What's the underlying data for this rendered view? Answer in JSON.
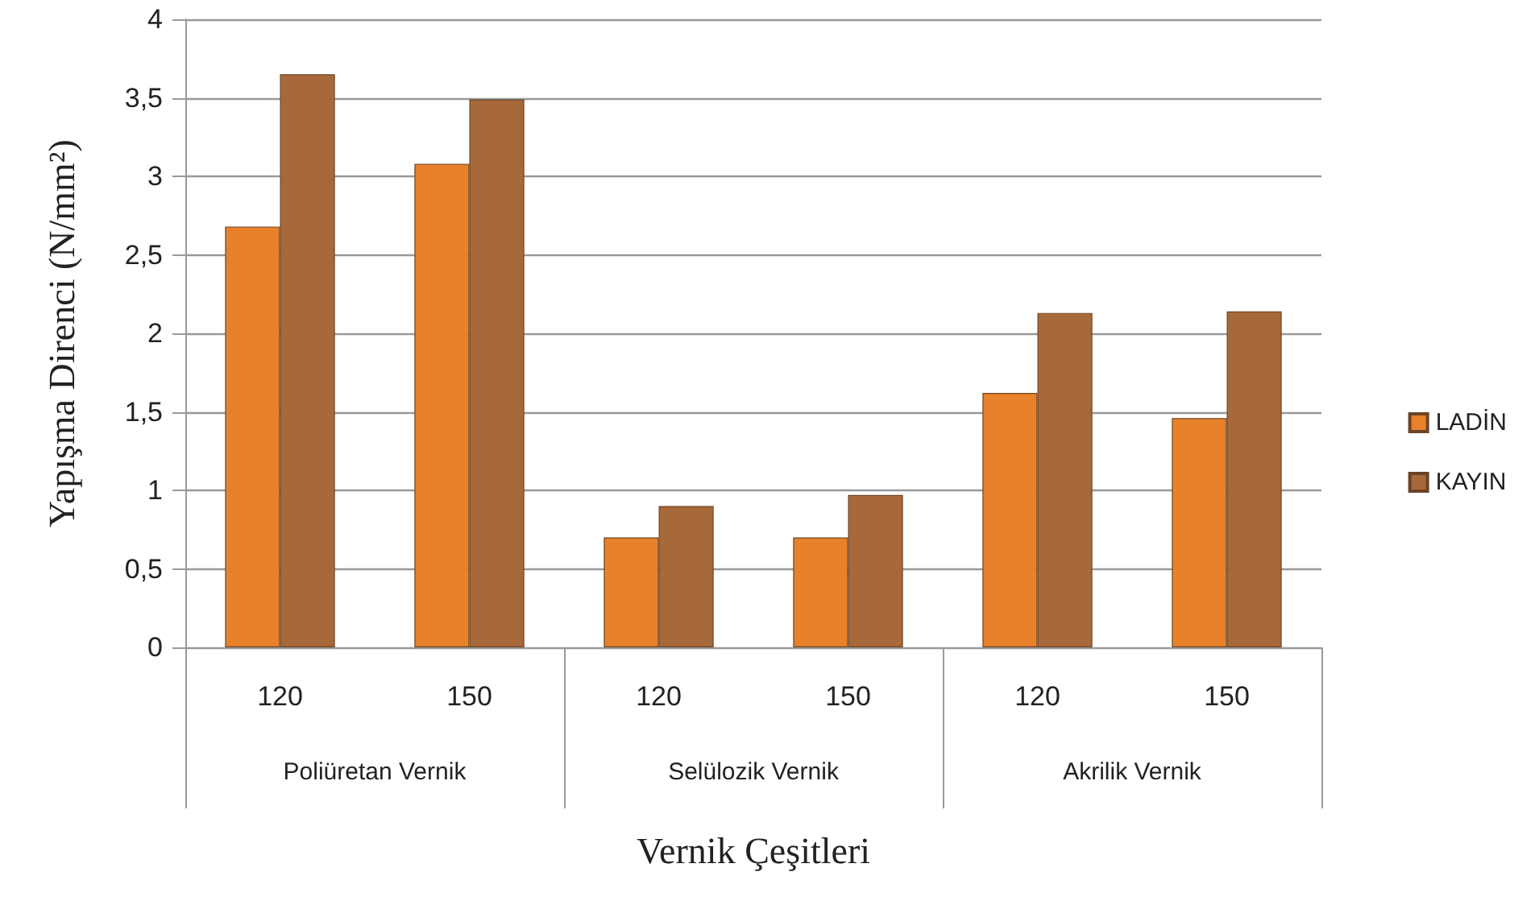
{
  "chart_data": {
    "type": "bar",
    "xlabel": "Vernik Çeşitleri",
    "ylabel": "Yapışma Direnci (N/mm²)",
    "categories": [
      "120",
      "150",
      "120",
      "150",
      "120",
      "150"
    ],
    "annotations": [
      "Poliüretan Vernik",
      "Selülozik Vernik",
      "Akrilik Vernik"
    ],
    "series": [
      {
        "name": "LADİN",
        "color": "#e8822a",
        "values": [
          2.68,
          3.08,
          0.7,
          0.7,
          1.62,
          1.46
        ]
      },
      {
        "name": "KAYIN",
        "color": "#a8693a",
        "values": [
          3.65,
          3.49,
          0.9,
          0.97,
          2.13,
          2.14
        ]
      }
    ],
    "ylim": [
      0,
      4
    ],
    "yticks": [
      0,
      {
        "value": 0.5,
        "label": "0,5"
      },
      1,
      {
        "value": 1.5,
        "label": "1,5"
      },
      2,
      {
        "value": 2.5,
        "label": "2,5"
      },
      3,
      {
        "value": 3.5,
        "label": "3,5"
      },
      4
    ],
    "grid": "y",
    "legend": "right"
  }
}
